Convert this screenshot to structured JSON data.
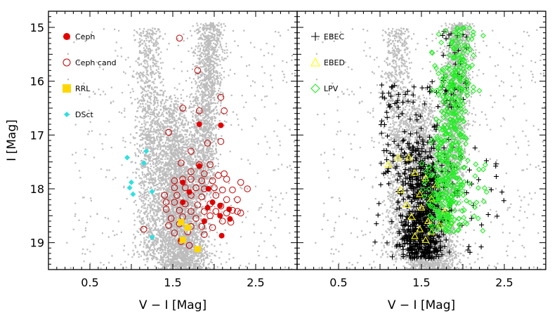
{
  "chart_data": [
    {
      "type": "scatter",
      "panel": "left",
      "xlabel": "V − I [Mag]",
      "ylabel": "I [Mag]",
      "xlim": [
        0.0,
        3.0
      ],
      "ylim": [
        19.5,
        14.7
      ],
      "y_inverted": true,
      "xticks": [
        0.5,
        1.5,
        2.5
      ],
      "xtick_labels": [
        "0.5",
        "1.5",
        "2.5"
      ],
      "yticks": [
        15,
        16,
        17,
        18,
        19
      ],
      "ytick_labels": [
        "15",
        "16",
        "17",
        "18",
        "19"
      ],
      "background_field": "grey CMD field stars (thousands of points)",
      "legend_position": "top-left",
      "series": [
        {
          "name": "Ceph",
          "marker": "filled-circle",
          "color": "#e30000",
          "points": [
            [
              1.82,
              16.8
            ],
            [
              2.08,
              16.82
            ],
            [
              1.82,
              17.58
            ],
            [
              1.62,
              17.88
            ],
            [
              1.7,
              18.06
            ],
            [
              1.93,
              18.0
            ],
            [
              1.62,
              18.25
            ],
            [
              1.98,
              18.25
            ],
            [
              1.92,
              18.35
            ],
            [
              2.07,
              18.31
            ],
            [
              2.18,
              18.38
            ],
            [
              2.07,
              18.5
            ],
            [
              1.88,
              18.6
            ],
            [
              2.19,
              18.56
            ],
            [
              1.6,
              18.95
            ],
            [
              2.09,
              18.87
            ]
          ]
        },
        {
          "name": "Ceph cand",
          "marker": "open-circle",
          "color": "#c00000",
          "points": [
            [
              1.58,
              15.2
            ],
            [
              1.8,
              15.8
            ],
            [
              1.62,
              16.5
            ],
            [
              1.82,
              16.55
            ],
            [
              2.08,
              16.3
            ],
            [
              2.12,
              16.55
            ],
            [
              1.45,
              16.95
            ],
            [
              1.92,
              17.15
            ],
            [
              1.72,
              17.3
            ],
            [
              2.08,
              17.12
            ],
            [
              1.6,
              17.52
            ],
            [
              1.82,
              17.55
            ],
            [
              1.95,
              17.55
            ],
            [
              1.72,
              17.68
            ],
            [
              1.88,
              17.72
            ],
            [
              2.05,
              17.75
            ],
            [
              2.12,
              17.72
            ],
            [
              1.52,
              17.85
            ],
            [
              1.62,
              17.82
            ],
            [
              1.72,
              17.82
            ],
            [
              1.85,
              17.85
            ],
            [
              1.98,
              17.85
            ],
            [
              2.15,
              17.82
            ],
            [
              2.32,
              17.88
            ],
            [
              1.52,
              17.98
            ],
            [
              1.65,
              17.98
            ],
            [
              1.78,
              17.98
            ],
            [
              1.88,
              18.0
            ],
            [
              2.0,
              17.98
            ],
            [
              2.1,
              18.02
            ],
            [
              2.22,
              18.02
            ],
            [
              2.4,
              18.0
            ],
            [
              1.4,
              18.12
            ],
            [
              1.55,
              18.12
            ],
            [
              1.72,
              18.12
            ],
            [
              1.85,
              18.15
            ],
            [
              2.02,
              18.12
            ],
            [
              2.15,
              18.2
            ],
            [
              2.28,
              18.2
            ],
            [
              1.42,
              18.25
            ],
            [
              1.52,
              18.25
            ],
            [
              1.65,
              18.28
            ],
            [
              1.8,
              18.3
            ],
            [
              1.95,
              18.28
            ],
            [
              2.08,
              18.32
            ],
            [
              2.22,
              18.4
            ],
            [
              2.28,
              18.42
            ],
            [
              2.32,
              18.45
            ],
            [
              1.42,
              18.38
            ],
            [
              1.58,
              18.4
            ],
            [
              1.72,
              18.42
            ],
            [
              1.88,
              18.42
            ],
            [
              2.02,
              18.42
            ],
            [
              2.15,
              18.45
            ],
            [
              1.48,
              18.55
            ],
            [
              1.62,
              18.52
            ],
            [
              1.78,
              18.55
            ],
            [
              1.95,
              18.5
            ],
            [
              2.1,
              18.6
            ],
            [
              2.2,
              18.62
            ],
            [
              1.45,
              18.68
            ],
            [
              1.58,
              18.65
            ],
            [
              1.72,
              18.7
            ],
            [
              1.85,
              18.7
            ],
            [
              1.98,
              18.72
            ],
            [
              1.15,
              18.75
            ],
            [
              1.52,
              18.82
            ],
            [
              1.68,
              18.8
            ],
            [
              1.88,
              18.85
            ],
            [
              1.6,
              18.98
            ],
            [
              1.7,
              19.05
            ]
          ]
        },
        {
          "name": "RRL",
          "marker": "filled-square",
          "color": "#ffd700",
          "points": [
            [
              1.6,
              18.62
            ],
            [
              1.68,
              18.72
            ],
            [
              1.62,
              18.95
            ],
            [
              1.8,
              19.12
            ]
          ]
        },
        {
          "name": "DSct",
          "marker": "filled-diamond",
          "color": "#30e0e0",
          "points": [
            [
              1.18,
              17.3
            ],
            [
              0.95,
              17.42
            ],
            [
              1.15,
              17.52
            ],
            [
              1.0,
              17.88
            ],
            [
              0.98,
              17.98
            ],
            [
              1.25,
              18.05
            ],
            [
              1.02,
              18.1
            ],
            [
              1.25,
              18.9
            ]
          ]
        }
      ]
    },
    {
      "type": "scatter",
      "panel": "right",
      "xlabel": "V − I [Mag]",
      "ylabel": "",
      "xlim": [
        0.0,
        3.0
      ],
      "ylim": [
        19.5,
        14.7
      ],
      "y_inverted": true,
      "xticks": [
        0.5,
        1.5,
        2.5
      ],
      "xtick_labels": [
        "0.5",
        "1.5",
        "2.5"
      ],
      "yticks": [
        15,
        16,
        17,
        18,
        19
      ],
      "background_field": "grey CMD field stars (thousands of points)",
      "legend_position": "top-left",
      "series": [
        {
          "name": "EBEC",
          "marker": "plus",
          "color": "#000000",
          "points": "many points concentrated near V-I 1.2–1.9, I 17–19.3, with a sparser branch up to I≈15 near V-I 1.9"
        },
        {
          "name": "EBED",
          "marker": "open-triangle",
          "color": "#ffff00",
          "points": [
            [
              1.35,
              17.42
            ],
            [
              1.22,
              17.42
            ],
            [
              1.1,
              17.55
            ],
            [
              1.42,
              17.7
            ],
            [
              1.55,
              17.8
            ],
            [
              1.68,
              17.92
            ],
            [
              1.25,
              18.02
            ],
            [
              1.48,
              18.1
            ],
            [
              1.62,
              18.18
            ],
            [
              1.32,
              18.3
            ],
            [
              1.5,
              18.35
            ],
            [
              1.78,
              18.42
            ],
            [
              1.38,
              18.52
            ],
            [
              1.58,
              18.6
            ],
            [
              1.72,
              18.68
            ],
            [
              1.85,
              18.62
            ],
            [
              1.48,
              18.75
            ],
            [
              1.62,
              18.8
            ],
            [
              1.42,
              18.88
            ],
            [
              1.55,
              18.95
            ]
          ]
        },
        {
          "name": "LPV",
          "marker": "open-diamond",
          "color": "#22ee22",
          "points": "many points concentrated near V-I 1.6–2.4, I 15–18.8, following the red giant branch"
        }
      ]
    }
  ]
}
